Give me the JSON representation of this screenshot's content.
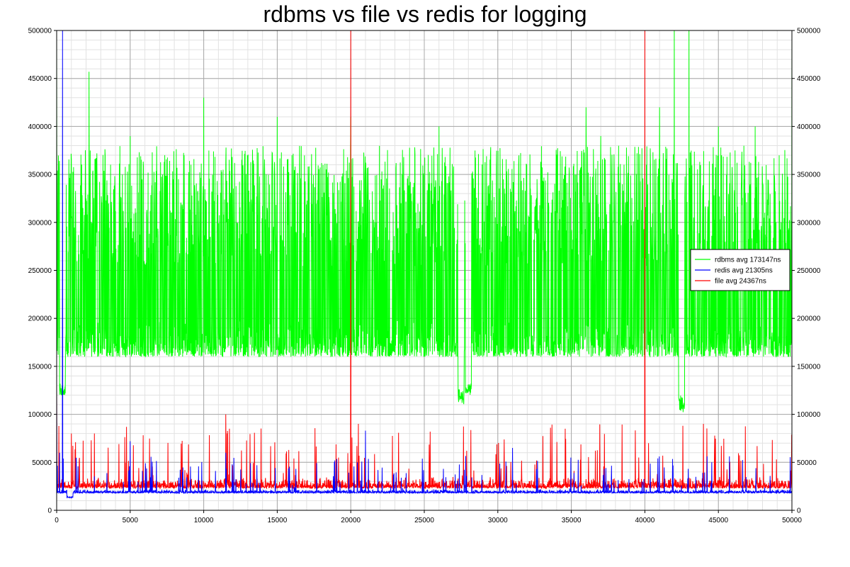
{
  "chart_data": {
    "type": "line",
    "title": "rdbms vs file vs redis for logging",
    "xlabel": "",
    "ylabel": "",
    "xlim": [
      0,
      50000
    ],
    "ylim": [
      0,
      500000
    ],
    "x_ticks": [
      "0",
      "5000",
      "10000",
      "15000",
      "20000",
      "25000",
      "30000",
      "35000",
      "40000",
      "45000",
      "50000"
    ],
    "y_ticks": [
      "0",
      "50000",
      "100000",
      "150000",
      "200000",
      "250000",
      "300000",
      "350000",
      "400000",
      "450000",
      "500000"
    ],
    "grid": true,
    "minor_grid": true,
    "right_axis_mirrors_left": true,
    "legend_position": "right",
    "series": [
      {
        "name": "rdbms avg 173147ns",
        "color": "#00ff00",
        "baseline_band": [
          150000,
          200000
        ],
        "spike_typical_max": 380000,
        "points": [
          [
            0,
            500000
          ],
          [
            200,
            350000
          ],
          [
            400,
            120000
          ],
          [
            600,
            160000
          ],
          [
            2200,
            457000
          ],
          [
            5000,
            390000
          ],
          [
            10000,
            430000
          ],
          [
            15000,
            410000
          ],
          [
            20000,
            410000
          ],
          [
            26000,
            400000
          ],
          [
            27500,
            110000
          ],
          [
            28000,
            120000
          ],
          [
            36000,
            420000
          ],
          [
            37000,
            390000
          ],
          [
            40000,
            380000
          ],
          [
            41000,
            420000
          ],
          [
            42000,
            500000
          ],
          [
            42500,
            100000
          ],
          [
            43000,
            500000
          ],
          [
            45000,
            400000
          ],
          [
            47500,
            400000
          ],
          [
            50000,
            500000
          ]
        ]
      },
      {
        "name": "redis avg 21305ns",
        "color": "#0000ff",
        "baseline_band": [
          17000,
          22000
        ],
        "points": [
          [
            0,
            130000
          ],
          [
            200,
            60000
          ],
          [
            400,
            500000
          ],
          [
            600,
            20000
          ],
          [
            900,
            13000
          ],
          [
            5000,
            72000
          ],
          [
            11500,
            60000
          ],
          [
            21000,
            83000
          ],
          [
            31000,
            65000
          ],
          [
            50000,
            20000
          ]
        ]
      },
      {
        "name": "file avg 24367ns",
        "color": "#ff0000",
        "baseline_band": [
          20000,
          35000
        ],
        "points": [
          [
            0,
            130000
          ],
          [
            1000,
            80000
          ],
          [
            11500,
            100000
          ],
          [
            20000,
            500000
          ],
          [
            40000,
            500000
          ],
          [
            50000,
            60000
          ]
        ]
      }
    ]
  }
}
